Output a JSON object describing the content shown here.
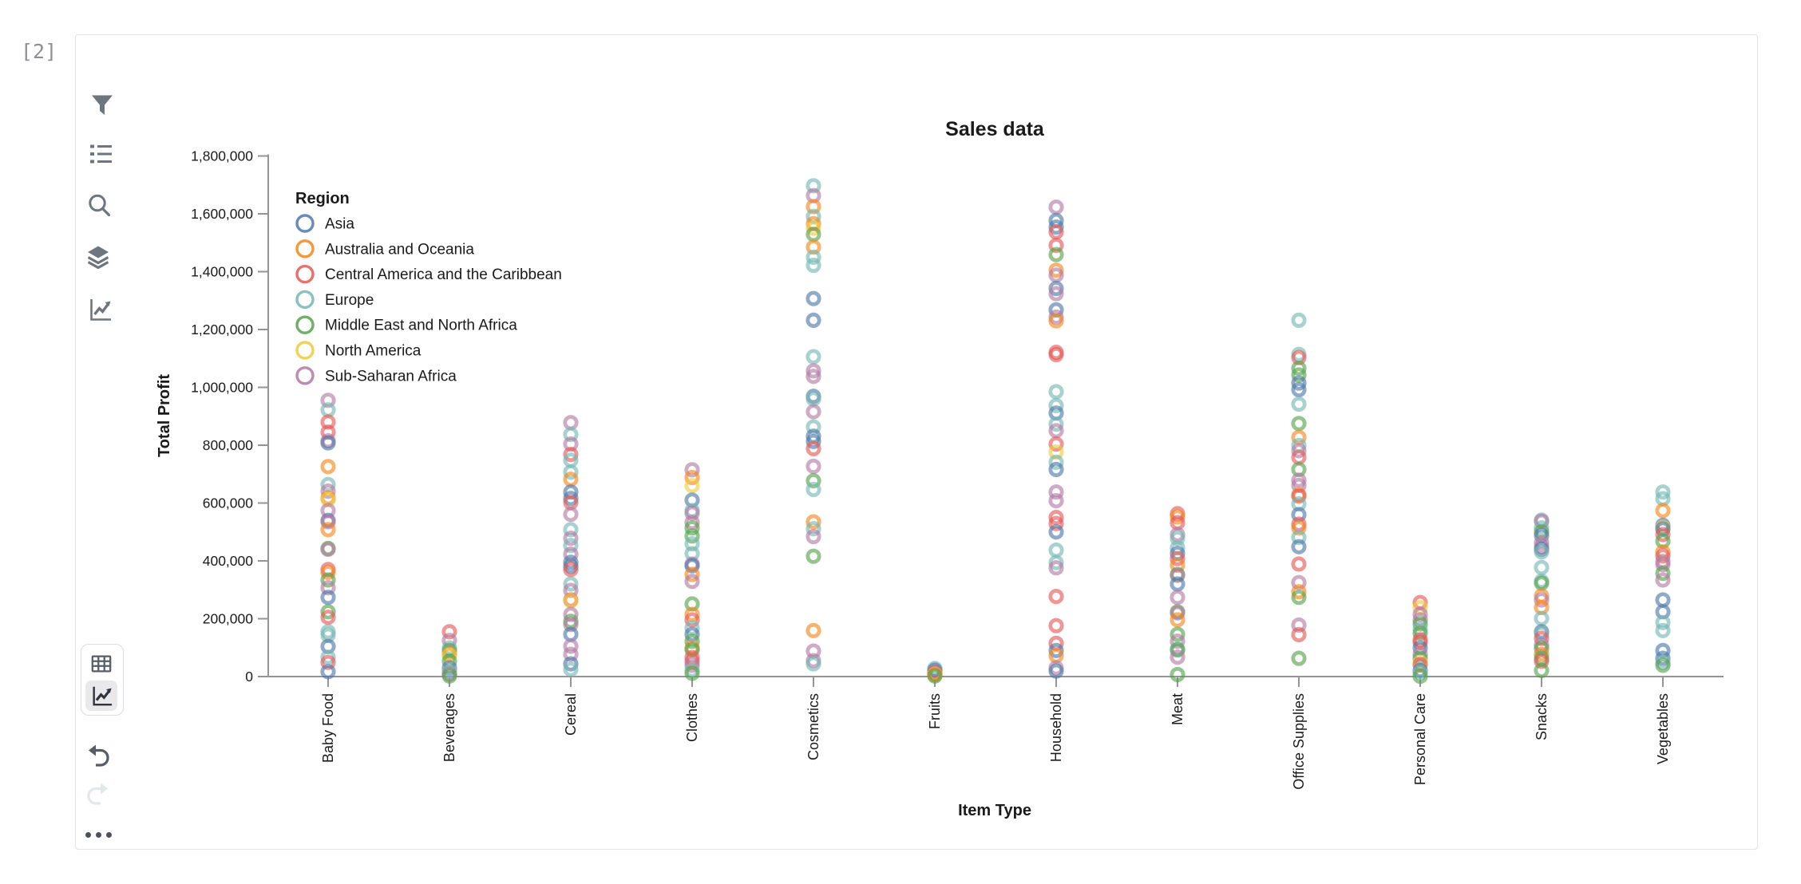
{
  "cell_prompt": "[2]",
  "colors": {
    "axis": "#949494",
    "chart_text": "#1a1a1a",
    "icon_gray": "#6d757f",
    "icon_dark": "#565d68",
    "icon_disabled": "#dfe2e6",
    "card_border": "#e4e4e7"
  },
  "sidebar": {
    "tools": [
      {
        "icon": "filter-icon"
      },
      {
        "icon": "list-icon"
      },
      {
        "icon": "search-icon"
      },
      {
        "icon": "layers-icon"
      },
      {
        "icon": "trend-icon"
      }
    ],
    "view_toggle": [
      {
        "icon": "table-view-icon",
        "selected": false
      },
      {
        "icon": "chart-view-icon",
        "selected": true
      }
    ],
    "undo_enabled": true,
    "redo_enabled": false
  },
  "chart_data": {
    "type": "scatter",
    "title": "Sales data",
    "xlabel": "Item Type",
    "ylabel": "Total Profit",
    "ylim": [
      0,
      1800000
    ],
    "ytick_step": 200000,
    "ytick_labels": [
      "0",
      "200,000",
      "400,000",
      "600,000",
      "800,000",
      "1,000,000",
      "1,200,000",
      "1,400,000",
      "1,600,000",
      "1,800,000"
    ],
    "grid": false,
    "legend_title": "Region",
    "legend_position": "top-left-inside",
    "marker": "open-circle",
    "regions": [
      {
        "name": "Asia",
        "color": "#4c78a8"
      },
      {
        "name": "Australia and Oceania",
        "color": "#f58518"
      },
      {
        "name": "Central America and the Caribbean",
        "color": "#e45756"
      },
      {
        "name": "Europe",
        "color": "#72b7b2"
      },
      {
        "name": "Middle East and North Africa",
        "color": "#54a24b"
      },
      {
        "name": "North America",
        "color": "#eeca3b"
      },
      {
        "name": "Sub-Saharan Africa",
        "color": "#b279a2"
      }
    ],
    "categories": [
      "Baby Food",
      "Beverages",
      "Cereal",
      "Clothes",
      "Cosmetics",
      "Fruits",
      "Household",
      "Meat",
      "Office Supplies",
      "Personal Care",
      "Snacks",
      "Vegetables"
    ],
    "points_format": [
      "category_index",
      "region_index",
      "total_profit"
    ],
    "points": [
      [
        0,
        6,
        955000
      ],
      [
        0,
        3,
        922000
      ],
      [
        0,
        2,
        880000
      ],
      [
        0,
        2,
        845000
      ],
      [
        0,
        6,
        815000
      ],
      [
        0,
        0,
        808000
      ],
      [
        0,
        1,
        726000
      ],
      [
        0,
        3,
        664000
      ],
      [
        0,
        6,
        641000
      ],
      [
        0,
        1,
        618000
      ],
      [
        0,
        5,
        612000
      ],
      [
        0,
        6,
        574000
      ],
      [
        0,
        0,
        540000
      ],
      [
        0,
        6,
        535000
      ],
      [
        0,
        1,
        508000
      ],
      [
        0,
        4,
        443000
      ],
      [
        0,
        6,
        440000
      ],
      [
        0,
        2,
        370000
      ],
      [
        0,
        1,
        360000
      ],
      [
        0,
        4,
        334000
      ],
      [
        0,
        6,
        307000
      ],
      [
        0,
        0,
        274000
      ],
      [
        0,
        4,
        224000
      ],
      [
        0,
        2,
        205000
      ],
      [
        0,
        3,
        155000
      ],
      [
        0,
        3,
        143000
      ],
      [
        0,
        0,
        104000
      ],
      [
        0,
        3,
        67000
      ],
      [
        0,
        2,
        49000
      ],
      [
        0,
        0,
        17000
      ],
      [
        1,
        2,
        155000
      ],
      [
        1,
        6,
        125000
      ],
      [
        1,
        3,
        99000
      ],
      [
        1,
        4,
        90000
      ],
      [
        1,
        1,
        77000
      ],
      [
        1,
        5,
        74000
      ],
      [
        1,
        4,
        53000
      ],
      [
        1,
        0,
        30000
      ],
      [
        1,
        3,
        17000
      ],
      [
        1,
        6,
        8000
      ],
      [
        1,
        4,
        2000
      ],
      [
        2,
        6,
        878000
      ],
      [
        2,
        3,
        837000
      ],
      [
        2,
        6,
        804000
      ],
      [
        2,
        2,
        768000
      ],
      [
        2,
        3,
        748000
      ],
      [
        2,
        3,
        707000
      ],
      [
        2,
        1,
        682000
      ],
      [
        2,
        0,
        638000
      ],
      [
        2,
        0,
        616000
      ],
      [
        2,
        2,
        602000
      ],
      [
        2,
        6,
        561000
      ],
      [
        2,
        3,
        508000
      ],
      [
        2,
        6,
        478000
      ],
      [
        2,
        3,
        453000
      ],
      [
        2,
        6,
        423000
      ],
      [
        2,
        0,
        395000
      ],
      [
        2,
        0,
        381000
      ],
      [
        2,
        2,
        370000
      ],
      [
        2,
        3,
        320000
      ],
      [
        2,
        6,
        298000
      ],
      [
        2,
        2,
        265000
      ],
      [
        2,
        5,
        262000
      ],
      [
        2,
        6,
        215000
      ],
      [
        2,
        4,
        191000
      ],
      [
        2,
        6,
        180000
      ],
      [
        2,
        0,
        146000
      ],
      [
        2,
        6,
        105000
      ],
      [
        2,
        6,
        77000
      ],
      [
        2,
        0,
        44000
      ],
      [
        2,
        3,
        25000
      ],
      [
        3,
        6,
        715000
      ],
      [
        3,
        1,
        688000
      ],
      [
        3,
        5,
        660000
      ],
      [
        3,
        0,
        610000
      ],
      [
        3,
        3,
        574000
      ],
      [
        3,
        6,
        565000
      ],
      [
        3,
        6,
        533000
      ],
      [
        3,
        4,
        514000
      ],
      [
        3,
        4,
        486000
      ],
      [
        3,
        3,
        459000
      ],
      [
        3,
        3,
        425000
      ],
      [
        3,
        6,
        389000
      ],
      [
        3,
        0,
        383000
      ],
      [
        3,
        1,
        353000
      ],
      [
        3,
        6,
        329000
      ],
      [
        3,
        4,
        251000
      ],
      [
        3,
        1,
        215000
      ],
      [
        3,
        2,
        196000
      ],
      [
        3,
        3,
        168000
      ],
      [
        3,
        0,
        146000
      ],
      [
        3,
        4,
        122000
      ],
      [
        3,
        1,
        99000
      ],
      [
        3,
        4,
        93000
      ],
      [
        3,
        2,
        66000
      ],
      [
        3,
        2,
        52000
      ],
      [
        3,
        6,
        39000
      ],
      [
        3,
        3,
        22000
      ],
      [
        3,
        4,
        11000
      ],
      [
        4,
        3,
        1697000
      ],
      [
        4,
        6,
        1663000
      ],
      [
        4,
        1,
        1625000
      ],
      [
        4,
        3,
        1591000
      ],
      [
        4,
        1,
        1566000
      ],
      [
        4,
        5,
        1550000
      ],
      [
        4,
        4,
        1529000
      ],
      [
        4,
        1,
        1485000
      ],
      [
        4,
        3,
        1450000
      ],
      [
        4,
        3,
        1422000
      ],
      [
        4,
        0,
        1307000
      ],
      [
        4,
        0,
        1232000
      ],
      [
        4,
        3,
        1106000
      ],
      [
        4,
        6,
        1057000
      ],
      [
        4,
        6,
        1038000
      ],
      [
        4,
        0,
        969000
      ],
      [
        4,
        3,
        960000
      ],
      [
        4,
        6,
        916000
      ],
      [
        4,
        3,
        863000
      ],
      [
        4,
        0,
        831000
      ],
      [
        4,
        0,
        813000
      ],
      [
        4,
        2,
        788000
      ],
      [
        4,
        6,
        727000
      ],
      [
        4,
        4,
        677000
      ],
      [
        4,
        3,
        647000
      ],
      [
        4,
        1,
        535000
      ],
      [
        4,
        3,
        511000
      ],
      [
        4,
        6,
        484000
      ],
      [
        4,
        4,
        416000
      ],
      [
        4,
        1,
        159000
      ],
      [
        4,
        6,
        88000
      ],
      [
        4,
        6,
        55000
      ],
      [
        4,
        3,
        44000
      ],
      [
        5,
        3,
        28000
      ],
      [
        5,
        0,
        22000
      ],
      [
        5,
        2,
        15000
      ],
      [
        5,
        6,
        12000
      ],
      [
        5,
        5,
        8000
      ],
      [
        5,
        1,
        6000
      ],
      [
        5,
        4,
        2000
      ],
      [
        6,
        6,
        1623000
      ],
      [
        6,
        0,
        1577000
      ],
      [
        6,
        0,
        1554000
      ],
      [
        6,
        2,
        1537000
      ],
      [
        6,
        2,
        1491000
      ],
      [
        6,
        4,
        1459000
      ],
      [
        6,
        1,
        1405000
      ],
      [
        6,
        6,
        1388000
      ],
      [
        6,
        0,
        1342000
      ],
      [
        6,
        6,
        1324000
      ],
      [
        6,
        0,
        1268000
      ],
      [
        6,
        6,
        1243000
      ],
      [
        6,
        1,
        1230000
      ],
      [
        6,
        2,
        1121000
      ],
      [
        6,
        2,
        1113000
      ],
      [
        6,
        3,
        985000
      ],
      [
        6,
        3,
        937000
      ],
      [
        6,
        0,
        911000
      ],
      [
        6,
        3,
        873000
      ],
      [
        6,
        6,
        850000
      ],
      [
        6,
        2,
        804000
      ],
      [
        6,
        5,
        776000
      ],
      [
        6,
        3,
        741000
      ],
      [
        6,
        0,
        716000
      ],
      [
        6,
        6,
        638000
      ],
      [
        6,
        6,
        608000
      ],
      [
        6,
        2,
        550000
      ],
      [
        6,
        2,
        529000
      ],
      [
        6,
        0,
        500000
      ],
      [
        6,
        3,
        437000
      ],
      [
        6,
        3,
        394000
      ],
      [
        6,
        6,
        376000
      ],
      [
        6,
        2,
        277000
      ],
      [
        6,
        2,
        176000
      ],
      [
        6,
        2,
        115000
      ],
      [
        6,
        0,
        90000
      ],
      [
        6,
        1,
        72000
      ],
      [
        6,
        6,
        30000
      ],
      [
        6,
        0,
        19000
      ],
      [
        7,
        2,
        563000
      ],
      [
        7,
        1,
        552000
      ],
      [
        7,
        2,
        532000
      ],
      [
        7,
        6,
        491000
      ],
      [
        7,
        3,
        478000
      ],
      [
        7,
        3,
        445000
      ],
      [
        7,
        0,
        426000
      ],
      [
        7,
        2,
        408000
      ],
      [
        7,
        1,
        385000
      ],
      [
        7,
        4,
        353000
      ],
      [
        7,
        6,
        350000
      ],
      [
        7,
        0,
        320000
      ],
      [
        7,
        6,
        274000
      ],
      [
        7,
        4,
        224000
      ],
      [
        7,
        6,
        220000
      ],
      [
        7,
        1,
        196000
      ],
      [
        7,
        4,
        146000
      ],
      [
        7,
        6,
        122000
      ],
      [
        7,
        3,
        95000
      ],
      [
        7,
        4,
        92000
      ],
      [
        7,
        6,
        67000
      ],
      [
        7,
        4,
        7000
      ],
      [
        8,
        3,
        1232000
      ],
      [
        8,
        3,
        1114000
      ],
      [
        8,
        2,
        1103000
      ],
      [
        8,
        4,
        1066000
      ],
      [
        8,
        4,
        1043000
      ],
      [
        8,
        0,
        1015000
      ],
      [
        8,
        0,
        992000
      ],
      [
        8,
        3,
        942000
      ],
      [
        8,
        4,
        875000
      ],
      [
        8,
        1,
        827000
      ],
      [
        8,
        3,
        799000
      ],
      [
        8,
        6,
        781000
      ],
      [
        8,
        2,
        758000
      ],
      [
        8,
        4,
        716000
      ],
      [
        8,
        6,
        679000
      ],
      [
        8,
        6,
        661000
      ],
      [
        8,
        1,
        629000
      ],
      [
        8,
        2,
        624000
      ],
      [
        8,
        3,
        597000
      ],
      [
        8,
        0,
        560000
      ],
      [
        8,
        2,
        527000
      ],
      [
        8,
        1,
        514000
      ],
      [
        8,
        3,
        481000
      ],
      [
        8,
        0,
        449000
      ],
      [
        8,
        2,
        389000
      ],
      [
        8,
        6,
        325000
      ],
      [
        8,
        1,
        293000
      ],
      [
        8,
        4,
        274000
      ],
      [
        8,
        6,
        178000
      ],
      [
        8,
        2,
        145000
      ],
      [
        8,
        4,
        63000
      ],
      [
        9,
        2,
        256000
      ],
      [
        9,
        5,
        238000
      ],
      [
        9,
        6,
        215000
      ],
      [
        9,
        6,
        196000
      ],
      [
        9,
        4,
        182000
      ],
      [
        9,
        3,
        164000
      ],
      [
        9,
        4,
        150000
      ],
      [
        9,
        2,
        127000
      ],
      [
        9,
        2,
        118000
      ],
      [
        9,
        0,
        99000
      ],
      [
        9,
        6,
        77000
      ],
      [
        9,
        4,
        63000
      ],
      [
        9,
        5,
        49000
      ],
      [
        9,
        2,
        41000
      ],
      [
        9,
        0,
        21000
      ],
      [
        9,
        3,
        14000
      ],
      [
        9,
        4,
        1000
      ],
      [
        10,
        3,
        541000
      ],
      [
        10,
        6,
        537000
      ],
      [
        10,
        3,
        514000
      ],
      [
        10,
        4,
        500000
      ],
      [
        10,
        0,
        488000
      ],
      [
        10,
        6,
        463000
      ],
      [
        10,
        6,
        449000
      ],
      [
        10,
        0,
        440000
      ],
      [
        10,
        3,
        431000
      ],
      [
        10,
        3,
        377000
      ],
      [
        10,
        3,
        330000
      ],
      [
        10,
        4,
        323000
      ],
      [
        10,
        1,
        279000
      ],
      [
        10,
        6,
        265000
      ],
      [
        10,
        1,
        239000
      ],
      [
        10,
        3,
        201000
      ],
      [
        10,
        0,
        155000
      ],
      [
        10,
        3,
        148000
      ],
      [
        10,
        2,
        132000
      ],
      [
        10,
        6,
        109000
      ],
      [
        10,
        4,
        97000
      ],
      [
        10,
        1,
        77000
      ],
      [
        10,
        4,
        63000
      ],
      [
        10,
        2,
        53000
      ],
      [
        10,
        4,
        21000
      ],
      [
        11,
        3,
        638000
      ],
      [
        11,
        3,
        615000
      ],
      [
        11,
        1,
        574000
      ],
      [
        11,
        0,
        523000
      ],
      [
        11,
        5,
        515000
      ],
      [
        11,
        0,
        510000
      ],
      [
        11,
        2,
        491000
      ],
      [
        11,
        4,
        468000
      ],
      [
        11,
        1,
        431000
      ],
      [
        11,
        2,
        417000
      ],
      [
        11,
        6,
        398000
      ],
      [
        11,
        6,
        387000
      ],
      [
        11,
        4,
        357000
      ],
      [
        11,
        6,
        334000
      ],
      [
        11,
        0,
        265000
      ],
      [
        11,
        0,
        224000
      ],
      [
        11,
        3,
        187000
      ],
      [
        11,
        3,
        159000
      ],
      [
        11,
        0,
        90000
      ],
      [
        11,
        0,
        63000
      ],
      [
        11,
        3,
        49000
      ],
      [
        11,
        4,
        39000
      ]
    ]
  }
}
